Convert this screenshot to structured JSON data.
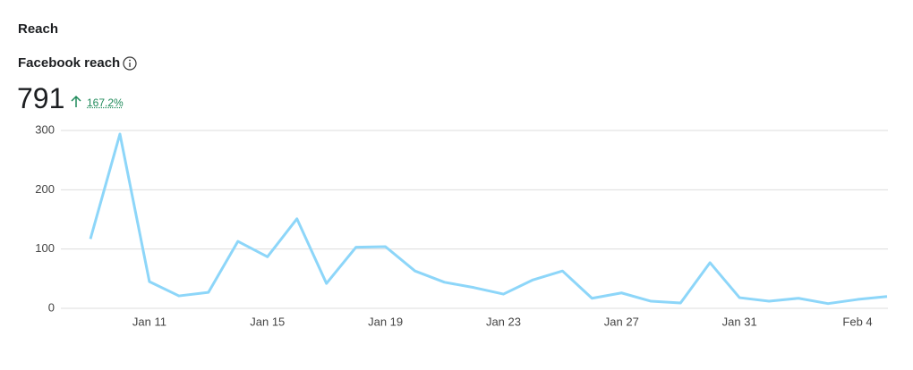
{
  "header": {
    "title": "Reach"
  },
  "metric": {
    "label": "Facebook reach",
    "value": "791",
    "change": "167.2%"
  },
  "chart_data": {
    "type": "line",
    "categories": [
      null,
      null,
      "Jan 11",
      null,
      null,
      null,
      "Jan 15",
      null,
      null,
      null,
      "Jan 19",
      null,
      null,
      null,
      "Jan 23",
      null,
      null,
      null,
      "Jan 27",
      null,
      null,
      null,
      "Jan 31",
      null,
      null,
      null,
      "Feb 4",
      null
    ],
    "series": [
      {
        "name": "Facebook reach",
        "color": "#8dd6f9",
        "values": [
          117,
          294,
          45,
          21,
          27,
          113,
          87,
          151,
          42,
          103,
          104,
          63,
          44,
          35,
          24,
          48,
          63,
          17,
          26,
          12,
          9,
          77,
          18,
          12,
          17,
          8,
          15,
          20
        ]
      }
    ],
    "ylim": [
      0,
      300
    ],
    "yticks": [
      0,
      100,
      200,
      300
    ],
    "grid": true
  }
}
